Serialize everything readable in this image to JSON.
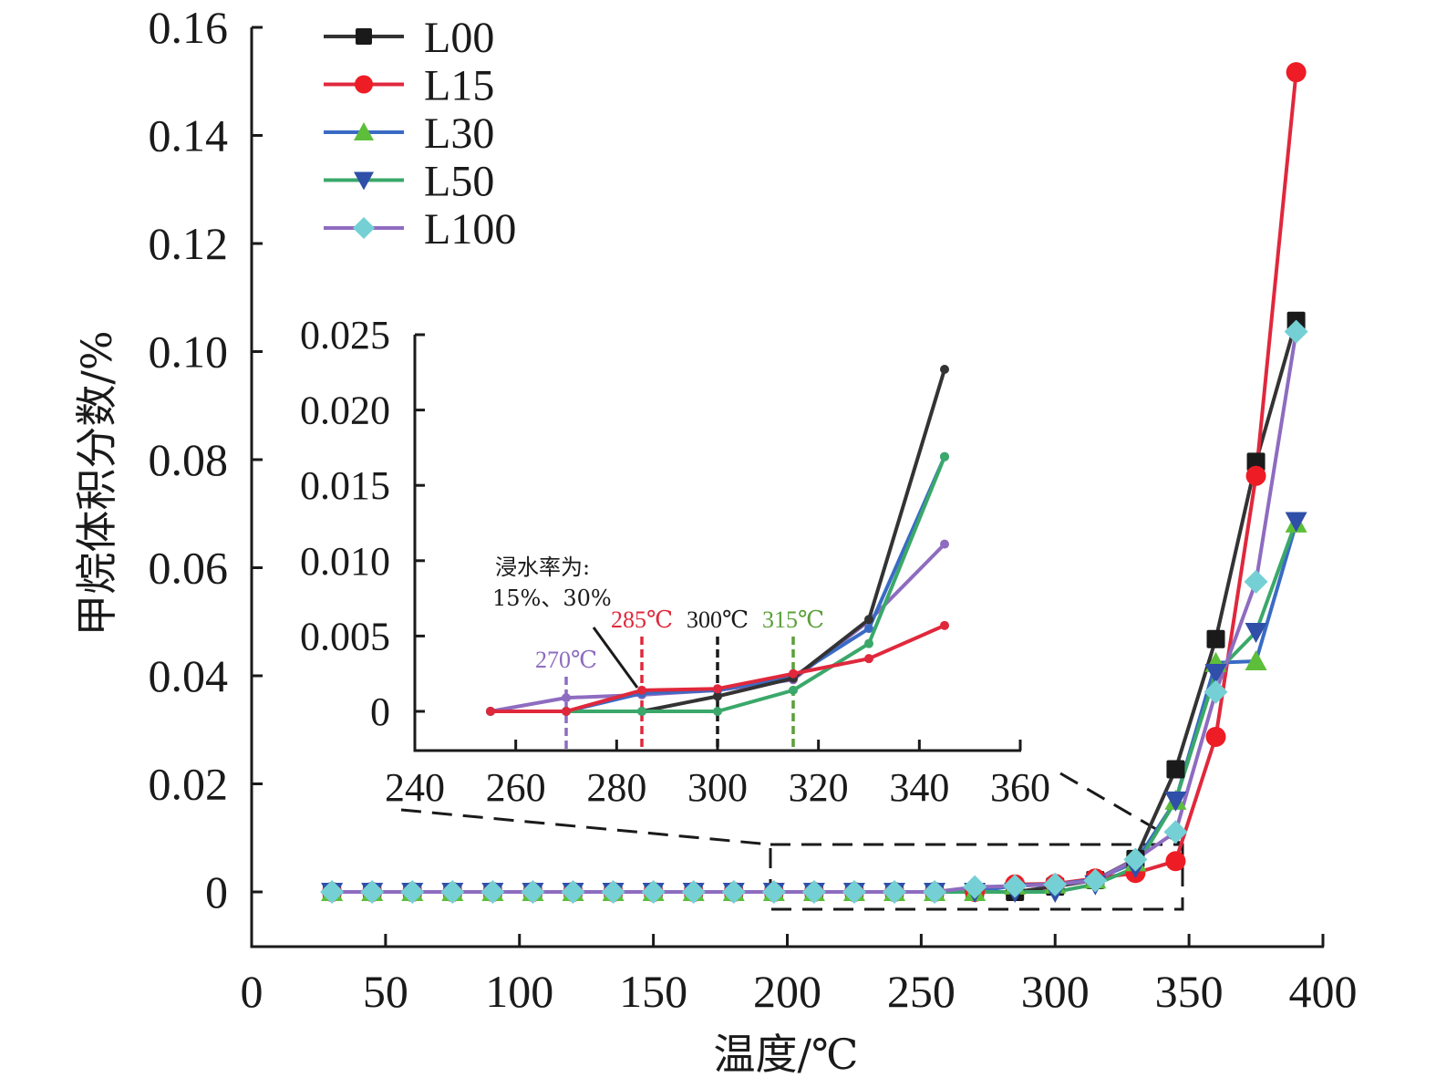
{
  "chart_data": [
    {
      "id": "main",
      "type": "line",
      "title": "",
      "xlabel": "温度/℃",
      "ylabel": "甲烷体积分数/%",
      "xlim": [
        0,
        400
      ],
      "ylim": [
        0,
        0.16
      ],
      "xticks": [
        "0",
        "50",
        "100",
        "150",
        "200",
        "250",
        "300",
        "350",
        "400"
      ],
      "yticks": [
        "0",
        "0.02",
        "0.04",
        "0.06",
        "0.08",
        "0.10",
        "0.12",
        "0.14",
        "0.16"
      ],
      "grid": false,
      "legend_position": "top-left",
      "x": [
        30,
        45,
        60,
        75,
        90,
        105,
        120,
        135,
        150,
        165,
        180,
        195,
        210,
        225,
        240,
        255,
        270,
        285,
        300,
        315,
        330,
        345,
        360,
        375,
        390
      ],
      "series": [
        {
          "name": "L00",
          "marker": "square",
          "line_color": "#333333",
          "marker_color": "#1a1a1a",
          "values": [
            0,
            0,
            0,
            0,
            0,
            0,
            0,
            0,
            0,
            0,
            0,
            0,
            0,
            0,
            0,
            0,
            0,
            0,
            0.001,
            0.0022,
            0.0061,
            0.0227,
            0.0468,
            0.0796,
            0.1057
          ]
        },
        {
          "name": "L15",
          "marker": "circle",
          "line_color": "#e0283c",
          "marker_color": "#ee1c25",
          "values": [
            0,
            0,
            0,
            0,
            0,
            0,
            0,
            0,
            0,
            0,
            0,
            0,
            0,
            0,
            0,
            0,
            0,
            0.0014,
            0.0015,
            0.0025,
            0.0035,
            0.0057,
            0.0287,
            0.077,
            0.1517
          ]
        },
        {
          "name": "L30",
          "marker": "triangle-up",
          "line_color": "#3a6bc4",
          "marker_color": "#5dbe3a",
          "values": [
            0,
            0,
            0,
            0,
            0,
            0,
            0,
            0,
            0,
            0,
            0,
            0,
            0,
            0,
            0,
            0,
            0,
            0.0012,
            0.0014,
            0.0023,
            0.0055,
            0.0169,
            0.0424,
            0.0427,
            0.0682
          ]
        },
        {
          "name": "L50",
          "marker": "triangle-down",
          "line_color": "#3aa86a",
          "marker_color": "#2f4fa8",
          "values": [
            0,
            0,
            0,
            0,
            0,
            0,
            0,
            0,
            0,
            0,
            0,
            0,
            0,
            0,
            0,
            0,
            0,
            0,
            0,
            0.0014,
            0.0045,
            0.0169,
            0.0405,
            0.0481,
            0.0686
          ]
        },
        {
          "name": "L100",
          "marker": "diamond",
          "line_color": "#8e6cc0",
          "marker_color": "#74d0d4",
          "values": [
            0,
            0,
            0,
            0,
            0,
            0,
            0,
            0,
            0,
            0,
            0,
            0,
            0,
            0,
            0,
            0,
            0.0009,
            0.0011,
            0.0014,
            0.0021,
            0.006,
            0.0111,
            0.037,
            0.0574,
            0.1037
          ]
        }
      ]
    },
    {
      "id": "inset",
      "type": "line",
      "title": "",
      "xlim": [
        240,
        360
      ],
      "ylim": [
        0,
        0.025
      ],
      "xticks": [
        "240",
        "260",
        "280",
        "300",
        "320",
        "340",
        "360"
      ],
      "yticks": [
        "0",
        "0.005",
        "0.010",
        "0.015",
        "0.020",
        "0.025"
      ],
      "grid": false,
      "x": [
        255,
        270,
        285,
        300,
        315,
        330,
        345
      ],
      "series": [
        {
          "name": "L00",
          "color": "#333333",
          "values": [
            0,
            0,
            0,
            0.001,
            0.0022,
            0.0061,
            0.0227
          ]
        },
        {
          "name": "L15",
          "color": "#e0283c",
          "values": [
            0,
            0,
            0.0014,
            0.0015,
            0.0025,
            0.0035,
            0.0057
          ]
        },
        {
          "name": "L30",
          "color": "#3a6bc4",
          "values": [
            0,
            0,
            0.0012,
            0.0014,
            0.0023,
            0.0055,
            0.0169
          ]
        },
        {
          "name": "L50",
          "color": "#3aa86a",
          "values": [
            0,
            0,
            0,
            0,
            0.0014,
            0.0045,
            0.0169
          ]
        },
        {
          "name": "L100",
          "color": "#8e6cc0",
          "values": [
            0,
            0.0009,
            0.0011,
            0.0014,
            0.0021,
            0.006,
            0.0111
          ]
        }
      ],
      "annotations": {
        "note_line1": "浸水率为:",
        "note_line2": "15%、30%",
        "markers": [
          {
            "x": 270,
            "label": "270℃",
            "color": "#8e6cc0"
          },
          {
            "x": 285,
            "label": "285℃",
            "color": "#e0283c"
          },
          {
            "x": 300,
            "label": "300℃",
            "color": "#1a1a1a"
          },
          {
            "x": 315,
            "label": "315℃",
            "color": "#5aa03a"
          }
        ]
      }
    }
  ]
}
